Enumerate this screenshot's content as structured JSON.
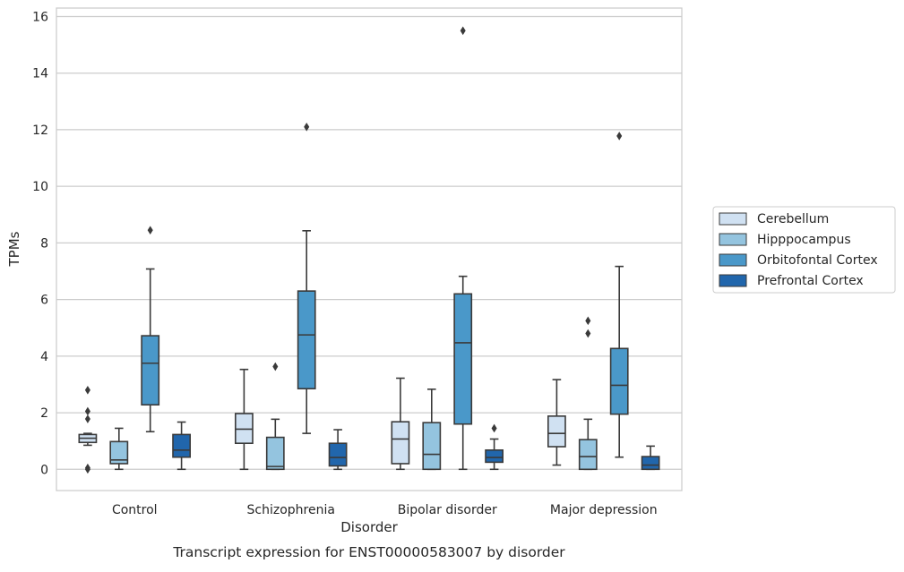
{
  "chart_data": {
    "type": "box",
    "xlabel": "Disorder",
    "ylabel": "TPMs",
    "caption": "Transcript expression for ENST00000583007 by disorder",
    "ylim": [
      -0.75,
      16.3
    ],
    "yticks": [
      0,
      2,
      4,
      6,
      8,
      10,
      12,
      14,
      16
    ],
    "categories": [
      "Control",
      "Schizophrenia",
      "Bipolar disorder",
      "Major depression"
    ],
    "grid": true,
    "legend_position": "right",
    "series": [
      {
        "name": "Cerebellum",
        "color": "#d0e1f2",
        "boxes": [
          {
            "whislo": 0.85,
            "q1": 0.95,
            "med": 1.1,
            "q3": 1.23,
            "whishi": 1.27,
            "fliers": [
              2.8,
              2.05,
              1.78,
              0.05,
              0.0
            ]
          },
          {
            "whislo": 0.0,
            "q1": 0.92,
            "med": 1.42,
            "q3": 1.97,
            "whishi": 3.53,
            "fliers": []
          },
          {
            "whislo": 0.0,
            "q1": 0.2,
            "med": 1.07,
            "q3": 1.68,
            "whishi": 3.22,
            "fliers": []
          },
          {
            "whislo": 0.15,
            "q1": 0.8,
            "med": 1.27,
            "q3": 1.88,
            "whishi": 3.17,
            "fliers": []
          }
        ]
      },
      {
        "name": "Hipppocampus",
        "color": "#94c4df",
        "boxes": [
          {
            "whislo": 0.0,
            "q1": 0.2,
            "med": 0.33,
            "q3": 0.98,
            "whishi": 1.45,
            "fliers": []
          },
          {
            "whislo": 0.0,
            "q1": 0.0,
            "med": 0.1,
            "q3": 1.13,
            "whishi": 1.77,
            "fliers": [
              3.63
            ]
          },
          {
            "whislo": 0.0,
            "q1": 0.0,
            "med": 0.53,
            "q3": 1.65,
            "whishi": 2.83,
            "fliers": []
          },
          {
            "whislo": 0.0,
            "q1": 0.0,
            "med": 0.45,
            "q3": 1.05,
            "whishi": 1.77,
            "fliers": [
              4.8,
              5.25
            ]
          }
        ]
      },
      {
        "name": "Orbitofontal Cortex",
        "color": "#4a98c9",
        "boxes": [
          {
            "whislo": 1.33,
            "q1": 2.28,
            "med": 3.75,
            "q3": 4.72,
            "whishi": 7.08,
            "fliers": [
              8.45
            ]
          },
          {
            "whislo": 1.27,
            "q1": 2.85,
            "med": 4.75,
            "q3": 6.3,
            "whishi": 8.43,
            "fliers": [
              12.1
            ]
          },
          {
            "whislo": 0.0,
            "q1": 1.6,
            "med": 4.47,
            "q3": 6.2,
            "whishi": 6.82,
            "fliers": [
              15.5
            ]
          },
          {
            "whislo": 0.43,
            "q1": 1.95,
            "med": 2.97,
            "q3": 4.27,
            "whishi": 7.17,
            "fliers": [
              11.78
            ]
          }
        ]
      },
      {
        "name": "Prefrontal Cortex",
        "color": "#2166ac",
        "boxes": [
          {
            "whislo": 0.0,
            "q1": 0.43,
            "med": 0.68,
            "q3": 1.23,
            "whishi": 1.67,
            "fliers": []
          },
          {
            "whislo": 0.0,
            "q1": 0.12,
            "med": 0.42,
            "q3": 0.92,
            "whishi": 1.4,
            "fliers": []
          },
          {
            "whislo": 0.0,
            "q1": 0.25,
            "med": 0.42,
            "q3": 0.68,
            "whishi": 1.07,
            "fliers": [
              1.45
            ]
          },
          {
            "whislo": 0.0,
            "q1": 0.0,
            "med": 0.15,
            "q3": 0.45,
            "whishi": 0.82,
            "fliers": []
          }
        ]
      }
    ]
  }
}
